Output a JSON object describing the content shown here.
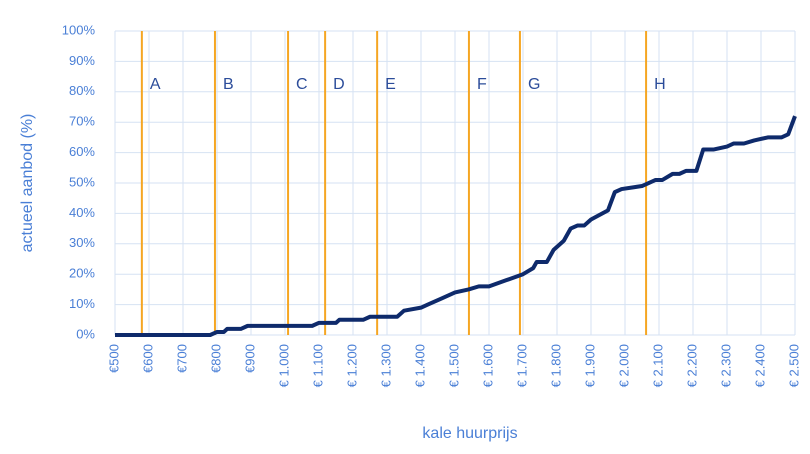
{
  "chart_data": {
    "type": "line",
    "x_label": "kale huurprijs",
    "y_label": "actueel aanbod (%)",
    "xlim": [
      500,
      2500
    ],
    "ylim": [
      0,
      100
    ],
    "xticks": [
      {
        "value": 500,
        "label": "€500"
      },
      {
        "value": 600,
        "label": "€600"
      },
      {
        "value": 700,
        "label": "€700"
      },
      {
        "value": 800,
        "label": "€800"
      },
      {
        "value": 900,
        "label": "€900"
      },
      {
        "value": 1000,
        "label": "€ 1.000"
      },
      {
        "value": 1100,
        "label": "€ 1.100"
      },
      {
        "value": 1200,
        "label": "€ 1.200"
      },
      {
        "value": 1300,
        "label": "€ 1.300"
      },
      {
        "value": 1400,
        "label": "€ 1.400"
      },
      {
        "value": 1500,
        "label": "€ 1.500"
      },
      {
        "value": 1600,
        "label": "€ 1.600"
      },
      {
        "value": 1700,
        "label": "€ 1.700"
      },
      {
        "value": 1800,
        "label": "€ 1.800"
      },
      {
        "value": 1900,
        "label": "€ 1.900"
      },
      {
        "value": 2000,
        "label": "€ 2.000"
      },
      {
        "value": 2100,
        "label": "€ 2.100"
      },
      {
        "value": 2200,
        "label": "€ 2.200"
      },
      {
        "value": 2300,
        "label": "€ 2.300"
      },
      {
        "value": 2400,
        "label": "€ 2.400"
      },
      {
        "value": 2500,
        "label": "€ 2.500"
      }
    ],
    "yticks": [
      {
        "value": 0,
        "label": "0%"
      },
      {
        "value": 10,
        "label": "10%"
      },
      {
        "value": 20,
        "label": "20%"
      },
      {
        "value": 30,
        "label": "30%"
      },
      {
        "value": 40,
        "label": "40%"
      },
      {
        "value": 50,
        "label": "50%"
      },
      {
        "value": 60,
        "label": "60%"
      },
      {
        "value": 70,
        "label": "70%"
      },
      {
        "value": 80,
        "label": "80%"
      },
      {
        "value": 90,
        "label": "90%"
      },
      {
        "value": 100,
        "label": "100%"
      }
    ],
    "grid": true,
    "reference_lines": [
      {
        "x": 579,
        "label": "A"
      },
      {
        "x": 794,
        "label": "B"
      },
      {
        "x": 1009,
        "label": "C"
      },
      {
        "x": 1118,
        "label": "D"
      },
      {
        "x": 1271,
        "label": "E"
      },
      {
        "x": 1541,
        "label": "F"
      },
      {
        "x": 1691,
        "label": "G"
      },
      {
        "x": 2062,
        "label": "H"
      }
    ],
    "reference_color": "#f5a623",
    "series": [
      {
        "color": "#0e2a6b",
        "x": [
          500,
          780,
          800,
          820,
          830,
          870,
          890,
          1080,
          1100,
          1150,
          1160,
          1230,
          1250,
          1330,
          1350,
          1400,
          1420,
          1460,
          1500,
          1540,
          1570,
          1600,
          1650,
          1700,
          1730,
          1740,
          1770,
          1790,
          1820,
          1840,
          1860,
          1880,
          1900,
          1950,
          1970,
          1990,
          2050,
          2090,
          2110,
          2140,
          2160,
          2180,
          2210,
          2230,
          2260,
          2300,
          2320,
          2350,
          2380,
          2420,
          2460,
          2480,
          2500
        ],
        "values": [
          0,
          0,
          1,
          1,
          2,
          2,
          3,
          3,
          4,
          4,
          5,
          5,
          6,
          6,
          8,
          9,
          10,
          12,
          14,
          15,
          16,
          16,
          18,
          20,
          22,
          24,
          24,
          28,
          31,
          35,
          36,
          36,
          38,
          41,
          47,
          48,
          49,
          51,
          51,
          53,
          53,
          54,
          54,
          61,
          61,
          62,
          63,
          63,
          64,
          65,
          65,
          66,
          72
        ]
      }
    ]
  }
}
